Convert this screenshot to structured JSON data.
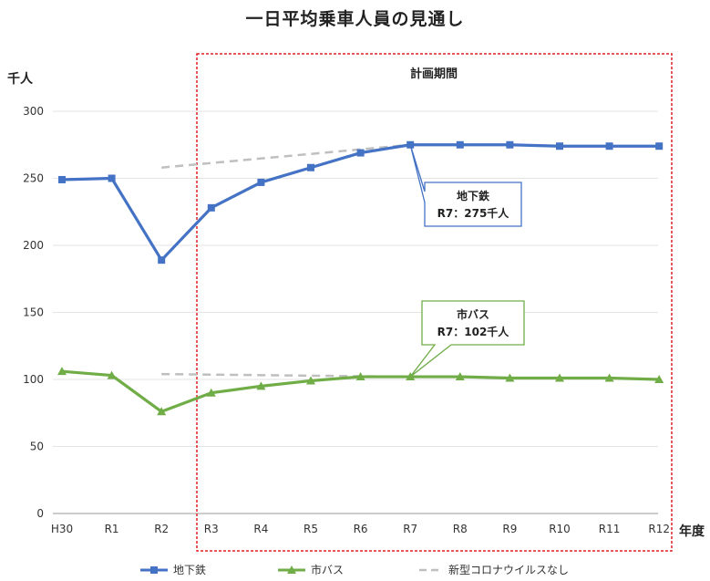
{
  "chart_data": {
    "type": "line",
    "title": "一日平均乗車人員の見通し",
    "ylabel": "千人",
    "xlabel": "年度",
    "categories": [
      "H30",
      "R1",
      "R2",
      "R3",
      "R4",
      "R5",
      "R6",
      "R7",
      "R8",
      "R9",
      "R10",
      "R11",
      "R12"
    ],
    "ylim": [
      0,
      300
    ],
    "yticks": [
      0,
      50,
      100,
      150,
      200,
      250,
      300
    ],
    "grid": true,
    "legend_position": "bottom",
    "series": [
      {
        "name": "地下鉄",
        "color": "#4472C4",
        "marker": "square",
        "values": [
          249,
          250,
          189,
          228,
          247,
          258,
          269,
          275,
          275,
          275,
          274,
          274,
          274
        ]
      },
      {
        "name": "市バス",
        "color": "#70AD47",
        "marker": "triangle",
        "values": [
          106,
          103,
          76,
          90,
          95,
          99,
          102,
          102,
          102,
          101,
          101,
          101,
          100
        ]
      },
      {
        "name": "新型コロナウイルスなし",
        "color": "#BFBFBF",
        "dashed": true,
        "lines": [
          {
            "x": [
              "R2",
              "R7"
            ],
            "values": [
              258,
              275
            ]
          },
          {
            "x": [
              "R2",
              "R7"
            ],
            "values": [
              104,
              102
            ]
          }
        ]
      }
    ],
    "planning_period": {
      "label": "計画期間",
      "from": "R3",
      "to": "R12"
    },
    "annotations": [
      {
        "series": "地下鉄",
        "at": "R7",
        "line1": "地下鉄",
        "line2": "R7：275千人"
      },
      {
        "series": "市バス",
        "at": "R7",
        "line1": "市バス",
        "line2": "R7：102千人"
      }
    ]
  }
}
